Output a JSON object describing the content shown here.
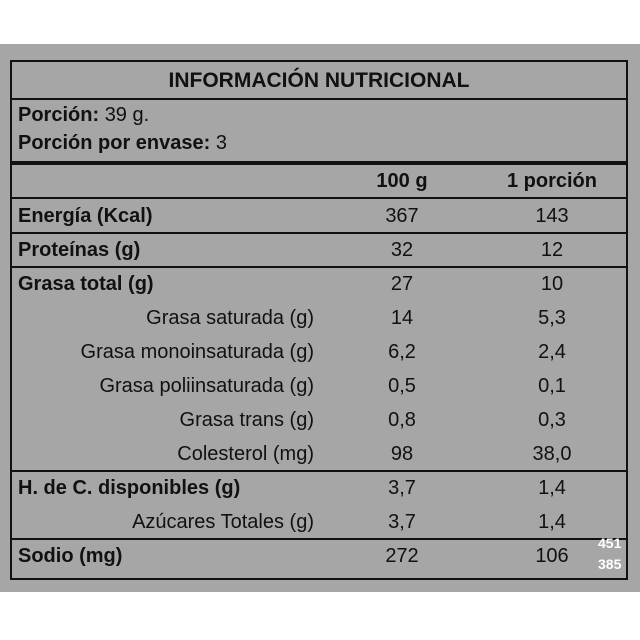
{
  "title": "INFORMACIÓN NUTRICIONAL",
  "portion": {
    "label": "Porción:",
    "value": "39 g."
  },
  "portions_per_pack": {
    "label": "Porción por envase:",
    "value": "3"
  },
  "columns": {
    "per100": "100 g",
    "perPortion": "1 porción"
  },
  "rows": [
    {
      "name": "Energía (Kcal)",
      "per100": "367",
      "perPortion": "143"
    },
    {
      "name": "Proteínas (g)",
      "per100": "32",
      "perPortion": "12"
    },
    {
      "name": "Grasa total (g)",
      "per100": "27",
      "perPortion": "10"
    },
    {
      "name": "Grasa saturada (g)",
      "per100": "14",
      "perPortion": "5,3"
    },
    {
      "name": "Grasa monoinsaturada (g)",
      "per100": "6,2",
      "perPortion": "2,4"
    },
    {
      "name": "Grasa poliinsaturada (g)",
      "per100": "0,5",
      "perPortion": "0,1"
    },
    {
      "name": "Grasa trans (g)",
      "per100": "0,8",
      "perPortion": "0,3"
    },
    {
      "name": "Colesterol (mg)",
      "per100": "98",
      "perPortion": "38,0"
    },
    {
      "name": "H. de C. disponibles (g)",
      "per100": "3,7",
      "perPortion": "1,4"
    },
    {
      "name": "Azúcares Totales (g)",
      "per100": "3,7",
      "perPortion": "1,4"
    },
    {
      "name": "Sodio (mg)",
      "per100": "272",
      "perPortion": "106"
    }
  ],
  "image_size": {
    "w": "451",
    "h": "385"
  },
  "colors": {
    "panel": "#a6a6a6",
    "ink": "#111111",
    "stamp": "#ffffff"
  }
}
